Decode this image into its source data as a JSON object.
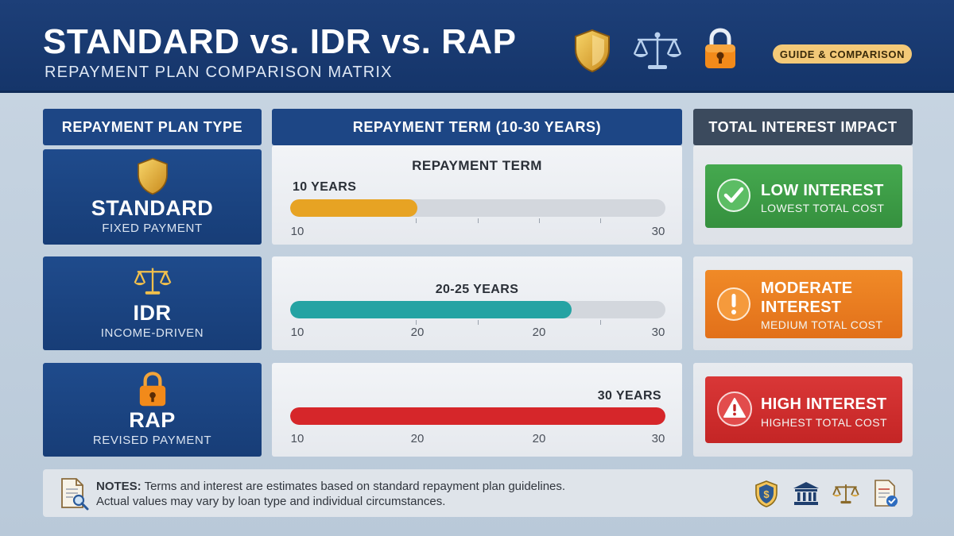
{
  "header": {
    "title": "STANDARD vs. IDR vs. RAP",
    "subtitle": "REPAYMENT PLAN COMPARISON MATRIX",
    "badge": "GUIDE & COMPARISON",
    "icons": [
      "shield-icon",
      "scales-icon",
      "padlock-icon"
    ]
  },
  "columns": {
    "plan_type": "REPAYMENT PLAN TYPE",
    "term": "REPAYMENT TERM (10-30 YEARS)",
    "impact": "TOTAL INTEREST IMPACT"
  },
  "rows": [
    {
      "plan": "STANDARD",
      "plan_sub": "FIXED PAYMENT",
      "icon": "shield-icon",
      "term_title": "REPAYMENT TERM",
      "term_label": "10 YEARS",
      "term_years": 10,
      "fill_color": "#e7a323",
      "ticks": [
        "10",
        "30"
      ],
      "impact_title": "LOW INTEREST",
      "impact_sub": "LOWEST TOTAL COST",
      "impact_color": "#3c9a45",
      "impact_icon": "checkmark-icon"
    },
    {
      "plan": "IDR",
      "plan_sub": "INCOME-DRIVEN",
      "icon": "scales-icon",
      "term_title": "",
      "term_label": "20-25 YEARS",
      "term_years": 25,
      "fill_color": "#25a3a3",
      "ticks": [
        "10",
        "20",
        "20",
        "30"
      ],
      "impact_title": "MODERATE INTEREST",
      "impact_sub": "MEDIUM TOTAL COST",
      "impact_color": "#ea7a1c",
      "impact_icon": "exclamation-icon"
    },
    {
      "plan": "RAP",
      "plan_sub": "REVISED PAYMENT",
      "icon": "padlock-icon",
      "term_title": "",
      "term_label": "30 YEARS",
      "term_years": 30,
      "fill_color": "#d6262a",
      "ticks": [
        "10",
        "20",
        "20",
        "30"
      ],
      "impact_title": "HIGH INTEREST",
      "impact_sub": "HIGHEST TOTAL COST",
      "impact_color": "#cf2d2d",
      "impact_icon": "warning-icon"
    }
  ],
  "notes": {
    "label": "NOTES:",
    "line1": "Terms and interest are estimates based on standard repayment plan guidelines.",
    "line2": "Actual values may vary by loan type and individual circumstances.",
    "icons": [
      "document-search-icon",
      "shield-dollar-icon",
      "bank-icon",
      "scales-icon",
      "document-check-icon"
    ]
  },
  "colors": {
    "navy": "#1d4685",
    "header_bg": "#1d3f78",
    "badge": "#f3c978"
  }
}
